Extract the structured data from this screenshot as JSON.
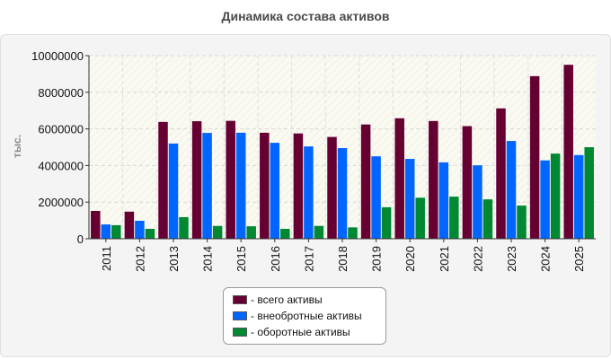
{
  "chart_data": {
    "type": "bar",
    "title": "Динамика состава активов",
    "xlabel": "",
    "ylabel": "тыс.",
    "ylim": [
      0,
      10000000
    ],
    "yticks": [
      "0",
      "2000000",
      "4000000",
      "6000000",
      "8000000",
      "10000000"
    ],
    "categories": [
      "2011",
      "2012",
      "2013",
      "2014",
      "2015",
      "2016",
      "2017",
      "2018",
      "2019",
      "2020",
      "2021",
      "2022",
      "2023",
      "2024",
      "2025"
    ],
    "series": [
      {
        "name": "- всего активы",
        "color": "#660033",
        "values": [
          1520000,
          1480000,
          6380000,
          6420000,
          6440000,
          5790000,
          5750000,
          5560000,
          6240000,
          6580000,
          6430000,
          6150000,
          7120000,
          8880000,
          9500000
        ]
      },
      {
        "name": "- внеобротные активы",
        "color": "#0066ff",
        "values": [
          780000,
          980000,
          5200000,
          5780000,
          5790000,
          5240000,
          5040000,
          4950000,
          4500000,
          4360000,
          4170000,
          4010000,
          5340000,
          4280000,
          4570000
        ]
      },
      {
        "name": "- оборотные активы",
        "color": "#008833",
        "values": [
          740000,
          540000,
          1180000,
          700000,
          680000,
          540000,
          700000,
          620000,
          1720000,
          2240000,
          2300000,
          2150000,
          1810000,
          4650000,
          5000000
        ]
      }
    ],
    "grid": true,
    "legend_position": "bottom"
  }
}
